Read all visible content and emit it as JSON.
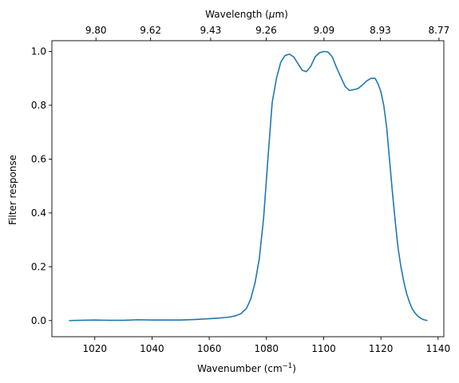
{
  "chart_data": {
    "type": "line",
    "xlabel": "Wavenumber (cm",
    "xlabel_sup": "−1",
    "xlabel_end": ")",
    "ylabel": "Filter response",
    "top_xlabel": "Wavelength (",
    "top_xlabel_mu": "μ",
    "top_xlabel_end": "m)",
    "xlim": [
      1005,
      1142
    ],
    "ylim": [
      -0.06,
      1.04
    ],
    "x_ticks": [
      {
        "value": 1020,
        "label": "1020"
      },
      {
        "value": 1040,
        "label": "1040"
      },
      {
        "value": 1060,
        "label": "1060"
      },
      {
        "value": 1080,
        "label": "1080"
      },
      {
        "value": 1100,
        "label": "1100"
      },
      {
        "value": 1120,
        "label": "1120"
      },
      {
        "value": 1140,
        "label": "1140"
      }
    ],
    "y_ticks": [
      {
        "value": 0.0,
        "label": "0.0"
      },
      {
        "value": 0.2,
        "label": "0.2"
      },
      {
        "value": 0.4,
        "label": "0.4"
      },
      {
        "value": 0.6,
        "label": "0.6"
      },
      {
        "value": 0.8,
        "label": "0.8"
      },
      {
        "value": 1.0,
        "label": "1.0"
      }
    ],
    "top_ticks": [
      {
        "value": 1020.4,
        "label": "9.80"
      },
      {
        "value": 1039.5,
        "label": "9.62"
      },
      {
        "value": 1060.5,
        "label": "9.43"
      },
      {
        "value": 1079.9,
        "label": "9.26"
      },
      {
        "value": 1100.1,
        "label": "9.09"
      },
      {
        "value": 1119.8,
        "label": "8.93"
      },
      {
        "value": 1140.3,
        "label": "8.77"
      }
    ],
    "series": [
      {
        "color": "#1f77b4",
        "x": [
          1011,
          1015,
          1020,
          1025,
          1030,
          1035,
          1040,
          1045,
          1050,
          1055,
          1060,
          1064,
          1067,
          1069,
          1071,
          1073,
          1074.5,
          1076,
          1077.5,
          1079,
          1080.5,
          1082,
          1083.5,
          1085,
          1086.5,
          1088,
          1089.5,
          1091,
          1092.5,
          1094,
          1095.5,
          1097,
          1098.5,
          1100,
          1101.5,
          1103,
          1104.5,
          1106,
          1107.5,
          1109,
          1110.5,
          1112,
          1113.5,
          1115,
          1116.5,
          1118,
          1119,
          1120,
          1121,
          1122,
          1123,
          1124,
          1125,
          1126,
          1127,
          1128,
          1129,
          1130,
          1131,
          1132,
          1133,
          1134,
          1135,
          1136.3
        ],
        "y": [
          0.0,
          0.001,
          0.002,
          0.001,
          0.001,
          0.003,
          0.002,
          0.002,
          0.002,
          0.004,
          0.007,
          0.01,
          0.013,
          0.017,
          0.025,
          0.045,
          0.08,
          0.14,
          0.23,
          0.38,
          0.6,
          0.81,
          0.9,
          0.96,
          0.985,
          0.99,
          0.98,
          0.955,
          0.93,
          0.925,
          0.945,
          0.98,
          0.995,
          1.0,
          0.998,
          0.98,
          0.94,
          0.905,
          0.87,
          0.855,
          0.858,
          0.862,
          0.875,
          0.89,
          0.9,
          0.9,
          0.88,
          0.85,
          0.8,
          0.72,
          0.6,
          0.48,
          0.37,
          0.27,
          0.2,
          0.145,
          0.1,
          0.068,
          0.043,
          0.027,
          0.016,
          0.008,
          0.003,
          0.0
        ]
      }
    ]
  }
}
